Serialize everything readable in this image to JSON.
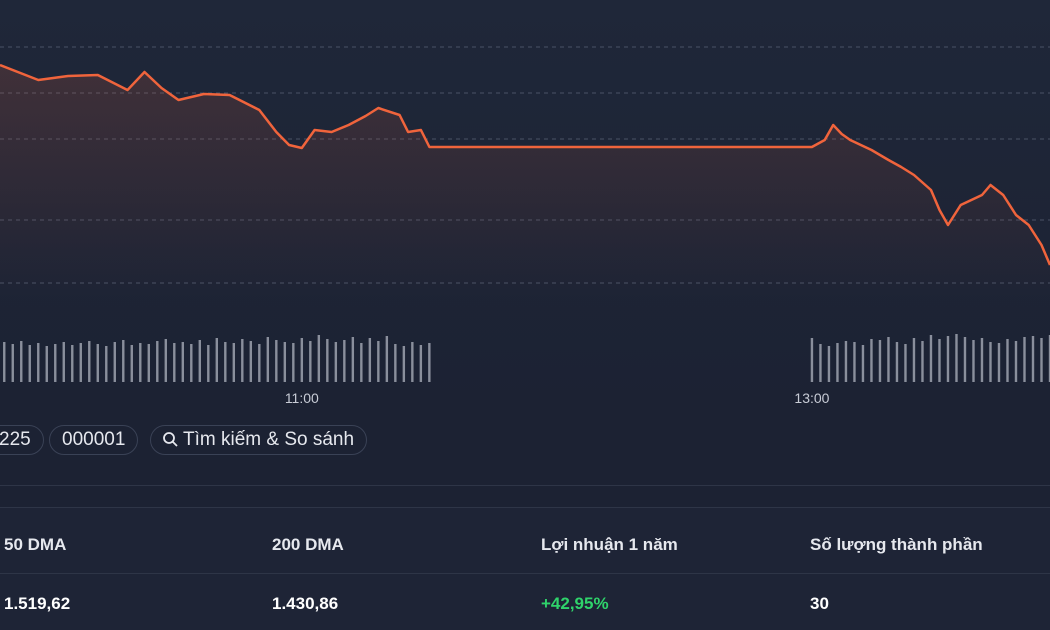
{
  "chart_data": [
    {
      "type": "line",
      "color": "#f0643c",
      "x": [
        589,
        598,
        605,
        612,
        619,
        623,
        627,
        631,
        637,
        643,
        650,
        654,
        657,
        660,
        663,
        667,
        671,
        675,
        678,
        683,
        685,
        688,
        690,
        780,
        783,
        785,
        787,
        789,
        794,
        798,
        801,
        804,
        808,
        810,
        812,
        815,
        820,
        822,
        825,
        828,
        831,
        834,
        836
      ],
      "values": [
        235,
        220,
        224,
        225,
        210,
        228,
        212,
        200,
        206,
        205,
        190,
        168,
        155,
        152,
        170,
        168,
        175,
        184,
        192,
        185,
        168,
        170,
        153,
        153,
        160,
        175,
        166,
        160,
        150,
        140,
        133,
        125,
        110,
        90,
        75,
        95,
        105,
        115,
        105,
        85,
        75,
        55,
        35
      ],
      "xlim": [
        589,
        836
      ],
      "ylim": [
        0,
        260
      ],
      "xticks": [
        {
          "value": 660,
          "label": "11:00"
        },
        {
          "value": 780,
          "label": "13:00"
        }
      ],
      "yticks": [
        17,
        80,
        161,
        207,
        253
      ],
      "grid": true
    },
    {
      "type": "bar",
      "color": "#8a8f9c",
      "x": [
        590,
        592,
        594,
        596,
        598,
        600,
        602,
        604,
        606,
        608,
        610,
        612,
        614,
        616,
        618,
        620,
        622,
        624,
        626,
        628,
        630,
        632,
        634,
        636,
        638,
        640,
        642,
        644,
        646,
        648,
        650,
        652,
        654,
        656,
        658,
        660,
        662,
        664,
        666,
        668,
        670,
        672,
        674,
        676,
        678,
        680,
        682,
        684,
        686,
        688,
        690,
        780,
        782,
        784,
        786,
        788,
        790,
        792,
        794,
        796,
        798,
        800,
        802,
        804,
        806,
        808,
        810,
        812,
        814,
        816,
        818,
        820,
        822,
        824,
        826,
        828,
        830,
        832,
        834,
        836
      ],
      "values": [
        40,
        38,
        41,
        37,
        39,
        36,
        38,
        40,
        37,
        39,
        41,
        38,
        36,
        40,
        42,
        37,
        39,
        38,
        41,
        43,
        39,
        40,
        38,
        42,
        37,
        44,
        40,
        39,
        43,
        41,
        38,
        45,
        42,
        40,
        39,
        44,
        41,
        47,
        43,
        40,
        42,
        45,
        39,
        44,
        41,
        46,
        38,
        36,
        40,
        37,
        39,
        44,
        38,
        36,
        39,
        41,
        40,
        37,
        43,
        42,
        45,
        40,
        38,
        44,
        41,
        47,
        43,
        46,
        48,
        45,
        42,
        44,
        40,
        39,
        43,
        41,
        45,
        46,
        44,
        47
      ],
      "xlim": [
        589,
        836
      ],
      "ylim": [
        0,
        60
      ]
    }
  ],
  "toolbar": {
    "chips": [
      "225",
      "000001",
      "Tìm kiếm & So sánh"
    ]
  },
  "stats": {
    "headers": [
      "50 DMA",
      "200 DMA",
      "Lợi nhuận 1 năm",
      "Số lượng thành phần"
    ],
    "values": [
      "1.519,62",
      "1.430,86",
      "+42,95%",
      "30"
    ]
  }
}
